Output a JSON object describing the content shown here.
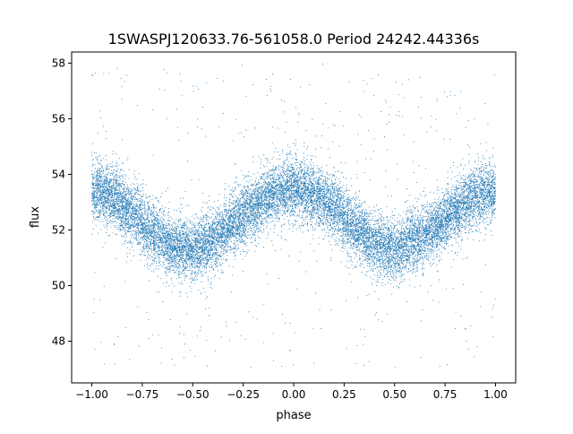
{
  "chart_data": {
    "type": "scatter",
    "title": "1SWASPJ120633.76-561058.0 Period 24242.44336s",
    "xlabel": "phase",
    "ylabel": "flux",
    "xlim": [
      -1.1,
      1.1
    ],
    "ylim": [
      46.5,
      58.4
    ],
    "xticks": [
      -1.0,
      -0.75,
      -0.5,
      -0.25,
      0.0,
      0.25,
      0.5,
      0.75,
      1.0
    ],
    "xtick_labels": [
      "−1.00",
      "−0.75",
      "−0.50",
      "−0.25",
      "0.00",
      "0.25",
      "0.50",
      "0.75",
      "1.00"
    ],
    "yticks": [
      48,
      50,
      52,
      54,
      56,
      58
    ],
    "ytick_labels": [
      "48",
      "50",
      "52",
      "54",
      "56",
      "58"
    ],
    "grid": false,
    "legend": "none",
    "marker_color": "#1f77b4",
    "series": [
      {
        "curve_phase": [
          -1.0,
          -0.9,
          -0.8,
          -0.7,
          -0.6,
          -0.5,
          -0.4,
          -0.3,
          -0.2,
          -0.1,
          0.0,
          0.1,
          0.2,
          0.3,
          0.4,
          0.5,
          0.6,
          0.7,
          0.8,
          0.9,
          1.0
        ],
        "curve_flux": [
          53.4,
          53.2,
          52.6,
          51.9,
          51.4,
          51.3,
          51.6,
          52.2,
          52.8,
          53.3,
          53.5,
          53.3,
          52.8,
          52.1,
          51.5,
          51.3,
          51.6,
          52.1,
          52.7,
          53.2,
          53.4
        ],
        "scatter_sigma": 0.55,
        "outlier_range": [
          47.0,
          58.0
        ],
        "n_points_approx": 16000
      }
    ]
  }
}
